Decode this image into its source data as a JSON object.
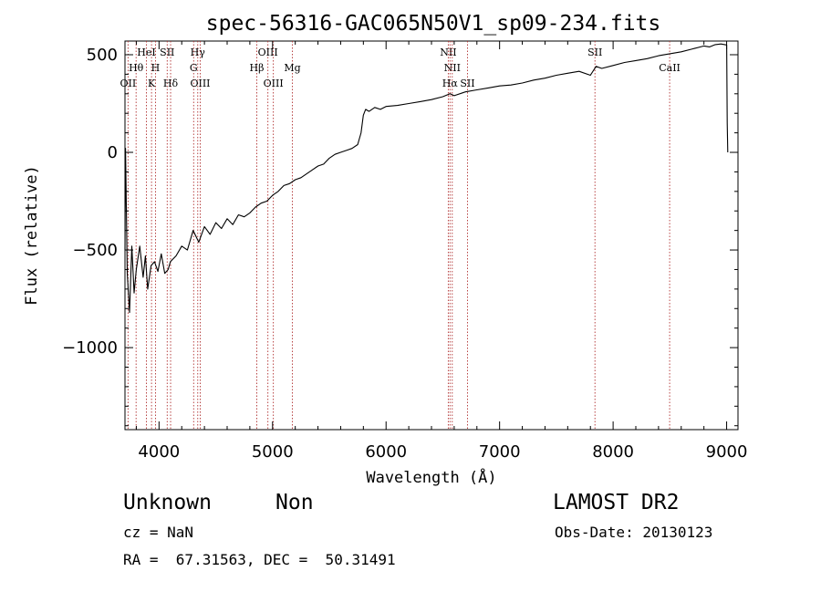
{
  "chart_data": {
    "type": "line",
    "title": "spec-56316-GAC065N50V1_sp09-234.fits",
    "xlabel": "Wavelength (Å)",
    "ylabel": "Flux (relative)",
    "xlim": [
      3700,
      9100
    ],
    "ylim": [
      -1420,
      570
    ],
    "xticks": [
      4000,
      5000,
      6000,
      7000,
      8000,
      9000
    ],
    "yticks": [
      500,
      0,
      -500,
      -1000
    ],
    "grid": false,
    "series": [
      {
        "color": "#000000",
        "x": [
          3700,
          3705,
          3720,
          3740,
          3760,
          3780,
          3800,
          3830,
          3860,
          3880,
          3900,
          3930,
          3960,
          3990,
          4020,
          4050,
          4080,
          4100,
          4150,
          4200,
          4250,
          4300,
          4350,
          4400,
          4450,
          4500,
          4550,
          4600,
          4650,
          4700,
          4750,
          4800,
          4850,
          4900,
          4950,
          5000,
          5050,
          5100,
          5150,
          5200,
          5250,
          5300,
          5350,
          5400,
          5450,
          5500,
          5550,
          5600,
          5650,
          5700,
          5750,
          5780,
          5800,
          5820,
          5850,
          5900,
          5950,
          6000,
          6100,
          6200,
          6300,
          6400,
          6500,
          6563,
          6600,
          6700,
          6800,
          6900,
          7000,
          7100,
          7200,
          7300,
          7400,
          7500,
          7600,
          7700,
          7800,
          7850,
          7900,
          8000,
          8100,
          8200,
          8300,
          8400,
          8500,
          8600,
          8700,
          8800,
          8850,
          8900,
          8950,
          9000,
          9005,
          9010
        ],
        "values": [
          -500,
          20,
          -620,
          -820,
          -480,
          -720,
          -600,
          -480,
          -640,
          -530,
          -700,
          -580,
          -560,
          -610,
          -520,
          -620,
          -600,
          -560,
          -530,
          -480,
          -500,
          -400,
          -460,
          -380,
          -420,
          -360,
          -390,
          -340,
          -370,
          -320,
          -330,
          -310,
          -280,
          -260,
          -250,
          -220,
          -200,
          -170,
          -160,
          -140,
          -130,
          -110,
          -90,
          -70,
          -60,
          -30,
          -10,
          0,
          10,
          20,
          40,
          100,
          190,
          220,
          210,
          230,
          220,
          235,
          240,
          250,
          260,
          270,
          285,
          300,
          290,
          310,
          320,
          330,
          340,
          345,
          355,
          370,
          380,
          395,
          405,
          415,
          395,
          440,
          430,
          445,
          460,
          470,
          480,
          495,
          505,
          515,
          530,
          545,
          540,
          552,
          555,
          550,
          150,
          0
        ]
      }
    ],
    "lines": [
      {
        "label": "OII",
        "x": 3727,
        "row": 3
      },
      {
        "label": "Hθ",
        "x": 3798,
        "row": 2
      },
      {
        "label": "HeI",
        "x": 3889,
        "row": 1
      },
      {
        "label": "K",
        "x": 3934,
        "row": 3
      },
      {
        "label": "H",
        "x": 3969,
        "row": 2
      },
      {
        "label": "SII",
        "x": 4072,
        "row": 1
      },
      {
        "label": "Hδ",
        "x": 4102,
        "row": 3
      },
      {
        "label": "Hγ",
        "x": 4341,
        "row": 1
      },
      {
        "label": "G",
        "x": 4305,
        "row": 2
      },
      {
        "label": "OIII",
        "x": 4363,
        "row": 3
      },
      {
        "label": "Hβ",
        "x": 4861,
        "row": 2
      },
      {
        "label": "OIII",
        "x": 4959,
        "row": 1
      },
      {
        "label": "OIII",
        "x": 5007,
        "row": 3
      },
      {
        "label": "Mg",
        "x": 5175,
        "row": 2
      },
      {
        "label": "NII",
        "x": 6548,
        "row": 1
      },
      {
        "label": "NII",
        "x": 6583,
        "row": 2
      },
      {
        "label": "Hα",
        "x": 6563,
        "row": 3
      },
      {
        "label": "SII",
        "x": 6717,
        "row": 3
      },
      {
        "label": "SII",
        "x": 7840,
        "row": 1
      },
      {
        "label": "CaII",
        "x": 8498,
        "row": 2
      }
    ]
  },
  "info": {
    "class_label": "Unknown",
    "subclass_label": "Non",
    "survey": "LAMOST DR2",
    "cz": "cz = NaN",
    "obs_date": "Obs-Date: 20130123",
    "coords": "RA =  67.31563, DEC =  50.31491"
  }
}
